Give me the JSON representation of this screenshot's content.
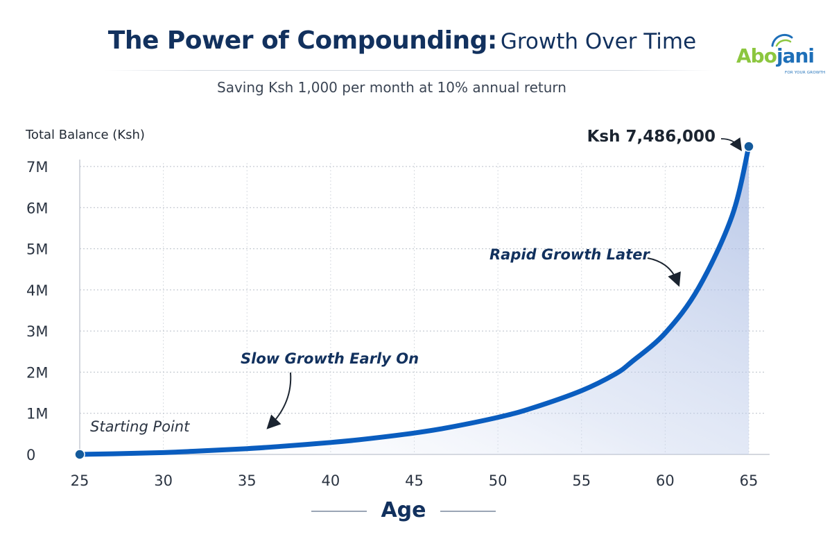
{
  "header": {
    "title_bold": "The Power of Compounding:",
    "title_regular": "Growth Over Time",
    "subtitle": "Saving Ksh 1,000 per month at 10% annual return"
  },
  "logo": {
    "text_part1": "Abo",
    "text_part2": "jani",
    "tagline": "FOR YOUR GROWTH",
    "colors": {
      "green": "#8cc63f",
      "blue": "#1e6fb8"
    }
  },
  "chart_data": {
    "type": "area",
    "title": "The Power of Compounding: Growth Over Time",
    "subtitle": "Saving Ksh 1,000 per month at 10% annual return",
    "xlabel": "Age",
    "ylabel": "Total Balance (Ksh)",
    "xlim": [
      25,
      65
    ],
    "ylim": [
      0,
      7000000
    ],
    "x_ticks": [
      25,
      30,
      35,
      40,
      45,
      50,
      55,
      60,
      65
    ],
    "y_ticks": [
      0,
      1000000,
      2000000,
      3000000,
      4000000,
      5000000,
      6000000,
      7000000
    ],
    "y_tick_labels": [
      "0",
      "1M",
      "2M",
      "3M",
      "4M",
      "5M",
      "6M",
      "7M"
    ],
    "grid": true,
    "series": [
      {
        "x": [
          25,
          27,
          30,
          32,
          35,
          37,
          40,
          42,
          45,
          47,
          50,
          52,
          55,
          57,
          58,
          60,
          62,
          64,
          65
        ],
        "values": [
          0,
          15000,
          45000,
          80000,
          140000,
          195000,
          290000,
          370000,
          520000,
          650000,
          900000,
          1120000,
          1550000,
          1950000,
          2250000,
          2950000,
          4050000,
          5800000,
          7486000
        ]
      }
    ],
    "annotations": [
      {
        "text": "Ksh 7,486,000",
        "x": 65,
        "y": 7486000
      },
      {
        "text": "Rapid Growth Later",
        "x": 62.8,
        "y": 4350000
      },
      {
        "text": "Slow Growth Early On",
        "x": 36.7,
        "y": 600000
      },
      {
        "text": "Starting Point",
        "x": 25,
        "y": 0
      }
    ],
    "colors": {
      "line": "#0a5dbf",
      "fill": "#b7c6e6",
      "text": "#12315e",
      "grid": "#b8bec8"
    }
  }
}
